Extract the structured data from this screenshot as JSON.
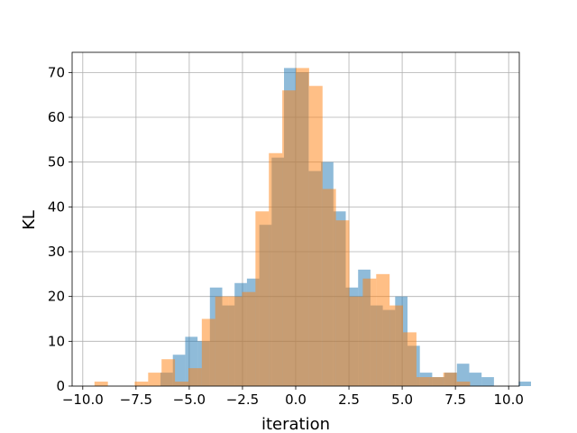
{
  "chart_data": {
    "type": "bar",
    "subtype": "histogram",
    "xlabel": "iteration",
    "ylabel": "KL",
    "xlim": [
      -10.5,
      10.5
    ],
    "ylim": [
      0,
      74.5
    ],
    "xticks": [
      "−10.0",
      "−7.5",
      "−5.0",
      "−2.5",
      "0.0",
      "2.5",
      "5.0",
      "7.5",
      "10.0"
    ],
    "xtick_values": [
      -10,
      -7.5,
      -5,
      -2.5,
      0,
      2.5,
      5,
      7.5,
      10
    ],
    "yticks": [
      "0",
      "10",
      "20",
      "30",
      "40",
      "50",
      "60",
      "70"
    ],
    "ytick_values": [
      0,
      10,
      20,
      30,
      40,
      50,
      60,
      70
    ],
    "grid": true,
    "series": [
      {
        "color": "#1f77b4",
        "alpha": 0.5,
        "bin_start": -6.35,
        "bin_width": 0.58,
        "values": [
          3,
          7,
          11,
          10,
          22,
          18,
          23,
          24,
          36,
          51,
          71,
          70,
          48,
          50,
          39,
          22,
          26,
          18,
          17,
          20,
          9,
          3,
          2,
          3,
          5,
          3,
          2,
          0,
          0,
          1
        ]
      },
      {
        "color": "#ff7f0e",
        "alpha": 0.5,
        "bin_start": -9.45,
        "bin_width": 0.63,
        "values": [
          1,
          0,
          0,
          1,
          3,
          6,
          1,
          4,
          15,
          20,
          20,
          21,
          39,
          52,
          66,
          71,
          67,
          44,
          37,
          20,
          24,
          25,
          18,
          12,
          2,
          2,
          3,
          1
        ]
      }
    ]
  }
}
